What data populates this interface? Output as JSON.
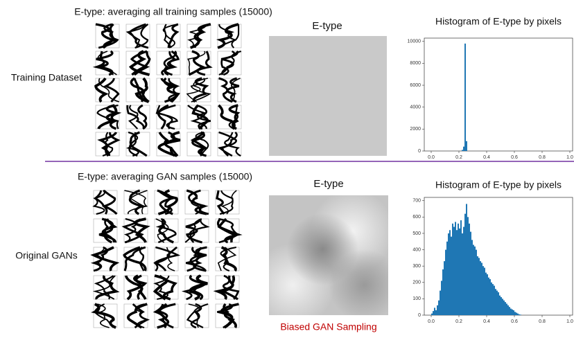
{
  "panels": [
    {
      "row_label": "Training Dataset",
      "grid_title": "E-type: averaging all training samples (15000)",
      "etype_title": "E-type"
    },
    {
      "row_label": "Original GANs",
      "grid_title": "E-type: averaging GAN samples (15000)",
      "etype_title": "E-type",
      "etype_caption": "Biased GAN Sampling"
    }
  ],
  "chart_data": [
    {
      "type": "histogram",
      "title": "Histogram of E-type by pixels",
      "color": "#1f77b4",
      "bins": [
        0.22,
        0.23,
        0.24,
        0.25,
        0.26,
        0.27
      ],
      "values": [
        100,
        400,
        9800,
        900,
        0
      ],
      "xlim": [
        -0.05,
        1.02
      ],
      "ylim": [
        0,
        10300
      ],
      "xticks": [
        {
          "value": 0,
          "label": "0.0"
        },
        0.2,
        0.4,
        0.6,
        0.8,
        {
          "value": 1,
          "label": "1.0"
        }
      ],
      "yticks": [
        0,
        2000,
        4000,
        6000,
        8000,
        10000
      ]
    },
    {
      "type": "histogram",
      "title": "Histogram of E-type by pixels",
      "color": "#1f77b4",
      "bins": [
        0,
        0.01,
        0.02,
        0.03,
        0.04,
        0.05,
        0.06,
        0.07,
        0.08,
        0.09,
        0.1,
        0.11,
        0.12,
        0.13,
        0.14,
        0.15,
        0.16,
        0.17,
        0.18,
        0.19,
        0.2,
        0.21,
        0.22,
        0.23,
        0.24,
        0.25,
        0.26,
        0.27,
        0.28,
        0.29,
        0.3,
        0.31,
        0.32,
        0.33,
        0.34,
        0.35,
        0.36,
        0.37,
        0.38,
        0.39,
        0.4,
        0.41,
        0.42,
        0.43,
        0.44,
        0.45,
        0.46,
        0.47,
        0.48,
        0.49,
        0.5,
        0.51,
        0.52,
        0.53,
        0.54,
        0.55,
        0.56,
        0.57,
        0.58,
        0.59,
        0.6,
        0.61,
        0.62,
        0.63,
        0.64,
        0.65
      ],
      "values": [
        10,
        25,
        45,
        30,
        60,
        90,
        150,
        210,
        280,
        330,
        400,
        450,
        500,
        520,
        480,
        560,
        540,
        570,
        520,
        560,
        530,
        580,
        500,
        540,
        620,
        680,
        600,
        560,
        510,
        460,
        430,
        420,
        400,
        360,
        350,
        330,
        320,
        300,
        290,
        260,
        250,
        230,
        220,
        200,
        190,
        180,
        160,
        150,
        140,
        120,
        110,
        100,
        90,
        80,
        70,
        60,
        50,
        40,
        35,
        30,
        20,
        15,
        10,
        5,
        3
      ],
      "xlim": [
        -0.05,
        1.02
      ],
      "ylim": [
        0,
        720
      ],
      "xticks": [
        {
          "value": 0,
          "label": "0.0"
        },
        0.2,
        0.4,
        0.6,
        0.8,
        {
          "value": 1,
          "label": "1.0"
        }
      ],
      "yticks": [
        0,
        100,
        200,
        300,
        400,
        500,
        600,
        700
      ]
    }
  ]
}
